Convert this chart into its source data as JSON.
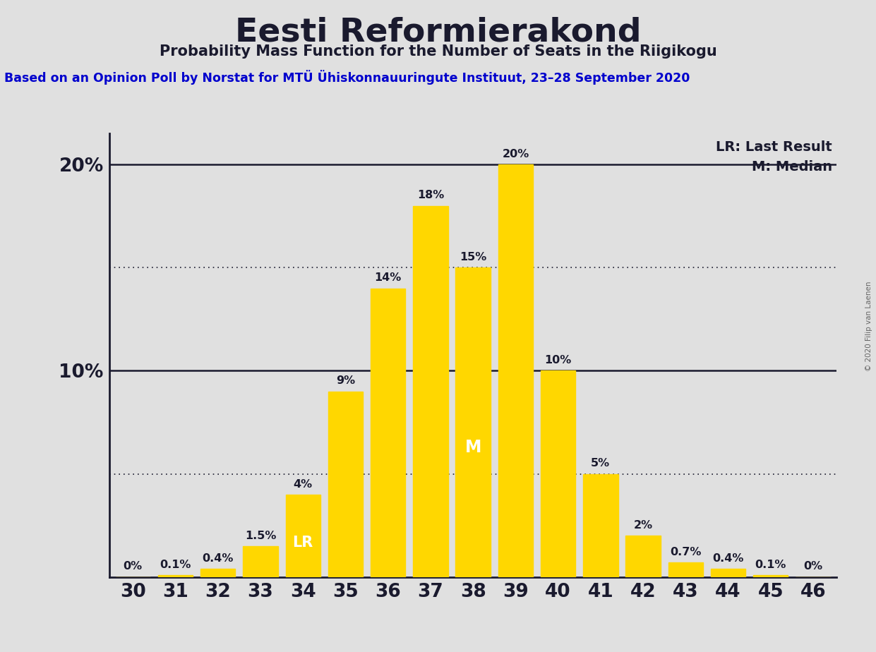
{
  "title": "Eesti Reformierakond",
  "subtitle": "Probability Mass Function for the Number of Seats in the Riigikogu",
  "source": "Based on an Opinion Poll by Norstat for MTÜ Ühiskonnauuringute Instituut, 23–28 September 2020",
  "copyright": "© 2020 Filip van Laenen",
  "seats": [
    30,
    31,
    32,
    33,
    34,
    35,
    36,
    37,
    38,
    39,
    40,
    41,
    42,
    43,
    44,
    45,
    46
  ],
  "probabilities": [
    0.0,
    0.1,
    0.4,
    1.5,
    4.0,
    9.0,
    14.0,
    18.0,
    15.0,
    20.0,
    10.0,
    5.0,
    2.0,
    0.7,
    0.4,
    0.1,
    0.0
  ],
  "labels": [
    "0%",
    "0.1%",
    "0.4%",
    "1.5%",
    "4%",
    "9%",
    "14%",
    "18%",
    "15%",
    "20%",
    "10%",
    "5%",
    "2%",
    "0.7%",
    "0.4%",
    "0.1%",
    "0%"
  ],
  "bar_color": "#FFD700",
  "bar_edge_color": "#FFD700",
  "last_result_seat": 34,
  "median_seat": 38,
  "background_color": "#E0E0E0",
  "plot_background_color": "#E0E0E0",
  "title_color": "#1A1A2E",
  "label_color": "#1A1A2E",
  "axis_color": "#1A1A2E",
  "lr_label_color": "#FFFFFF",
  "median_label_color": "#FFFFFF",
  "grid_color": "#1A1A2E",
  "source_color": "#0000CD",
  "ylim": [
    0,
    21.5
  ],
  "ytick_solid": [
    10,
    20
  ],
  "ytick_dotted": [
    5,
    15
  ],
  "legend_lr": "LR: Last Result",
  "legend_m": "M: Median",
  "bar_width": 0.82
}
